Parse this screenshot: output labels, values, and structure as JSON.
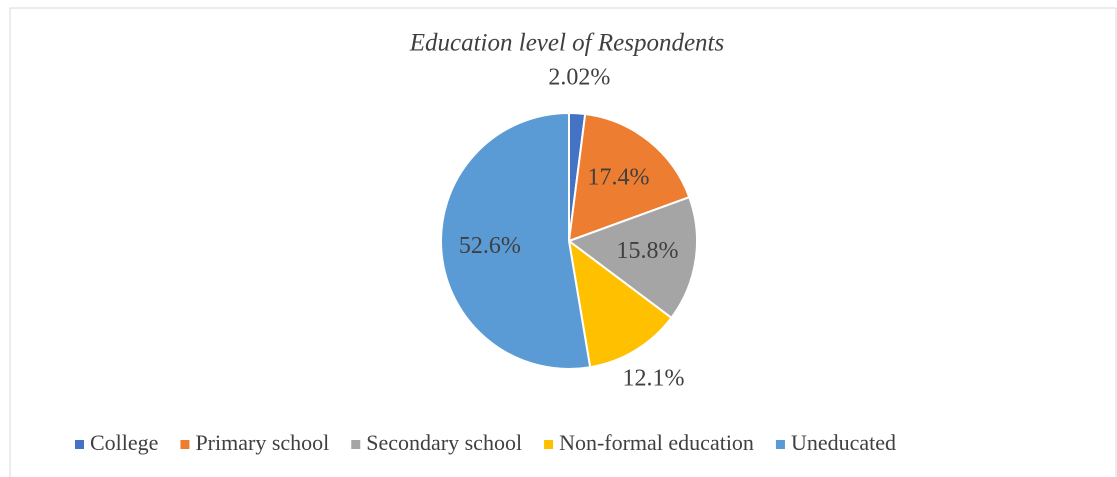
{
  "chart_data": {
    "type": "pie",
    "title": "Education level of Respondents",
    "categories": [
      "College",
      "Primary school",
      "Secondary school",
      "Non-formal education",
      "Uneducated"
    ],
    "values": [
      2.02,
      17.4,
      15.8,
      12.1,
      52.6
    ],
    "value_labels": [
      "2.02%",
      "17.4%",
      "15.8%",
      "12.1%",
      "52.6%"
    ],
    "colors": [
      "#4472c4",
      "#ed7d31",
      "#a5a5a5",
      "#ffc000",
      "#5b9bd5"
    ],
    "legend": "bottom"
  }
}
